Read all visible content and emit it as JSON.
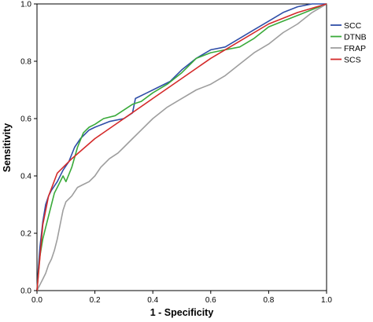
{
  "chart_data": {
    "type": "line",
    "title": "",
    "xlabel": "1 - Specificity",
    "ylabel": "Sensitivity",
    "xlim": [
      0.0,
      1.0
    ],
    "ylim": [
      0.0,
      1.0
    ],
    "xticks": [
      "0.0",
      "0.2",
      "0.4",
      "0.6",
      "0.8",
      "1.0"
    ],
    "yticks": [
      "0.0",
      "0.2",
      "0.4",
      "0.6",
      "0.8",
      "1.0"
    ],
    "grid": false,
    "legend_position": "right",
    "series": [
      {
        "name": "SCC",
        "color": "#2f4ea8",
        "points": [
          [
            0,
            0
          ],
          [
            0.005,
            0.08
          ],
          [
            0.01,
            0.15
          ],
          [
            0.02,
            0.24
          ],
          [
            0.03,
            0.3
          ],
          [
            0.04,
            0.33
          ],
          [
            0.05,
            0.35
          ],
          [
            0.07,
            0.38
          ],
          [
            0.09,
            0.42
          ],
          [
            0.11,
            0.45
          ],
          [
            0.13,
            0.5
          ],
          [
            0.15,
            0.53
          ],
          [
            0.18,
            0.56
          ],
          [
            0.2,
            0.57
          ],
          [
            0.25,
            0.59
          ],
          [
            0.3,
            0.6
          ],
          [
            0.33,
            0.62
          ],
          [
            0.34,
            0.67
          ],
          [
            0.38,
            0.69
          ],
          [
            0.42,
            0.71
          ],
          [
            0.46,
            0.73
          ],
          [
            0.5,
            0.77
          ],
          [
            0.55,
            0.81
          ],
          [
            0.6,
            0.84
          ],
          [
            0.65,
            0.85
          ],
          [
            0.7,
            0.88
          ],
          [
            0.75,
            0.91
          ],
          [
            0.8,
            0.94
          ],
          [
            0.85,
            0.97
          ],
          [
            0.9,
            0.99
          ],
          [
            0.95,
            1.0
          ],
          [
            1.0,
            1.0
          ]
        ]
      },
      {
        "name": "DTNB",
        "color": "#3aaa3a",
        "points": [
          [
            0,
            0
          ],
          [
            0.005,
            0.06
          ],
          [
            0.01,
            0.12
          ],
          [
            0.02,
            0.18
          ],
          [
            0.03,
            0.22
          ],
          [
            0.04,
            0.26
          ],
          [
            0.05,
            0.3
          ],
          [
            0.06,
            0.34
          ],
          [
            0.07,
            0.36
          ],
          [
            0.09,
            0.4
          ],
          [
            0.1,
            0.38
          ],
          [
            0.12,
            0.43
          ],
          [
            0.14,
            0.5
          ],
          [
            0.16,
            0.55
          ],
          [
            0.18,
            0.57
          ],
          [
            0.2,
            0.58
          ],
          [
            0.23,
            0.6
          ],
          [
            0.27,
            0.61
          ],
          [
            0.3,
            0.63
          ],
          [
            0.33,
            0.65
          ],
          [
            0.36,
            0.66
          ],
          [
            0.4,
            0.69
          ],
          [
            0.45,
            0.72
          ],
          [
            0.5,
            0.76
          ],
          [
            0.55,
            0.81
          ],
          [
            0.6,
            0.83
          ],
          [
            0.65,
            0.84
          ],
          [
            0.7,
            0.85
          ],
          [
            0.75,
            0.88
          ],
          [
            0.8,
            0.92
          ],
          [
            0.85,
            0.94
          ],
          [
            0.9,
            0.96
          ],
          [
            0.95,
            0.98
          ],
          [
            1.0,
            1.0
          ]
        ]
      },
      {
        "name": "FRAP",
        "color": "#9e9e9e",
        "points": [
          [
            0,
            0
          ],
          [
            0.01,
            0.02
          ],
          [
            0.02,
            0.04
          ],
          [
            0.03,
            0.06
          ],
          [
            0.04,
            0.09
          ],
          [
            0.05,
            0.11
          ],
          [
            0.06,
            0.14
          ],
          [
            0.07,
            0.18
          ],
          [
            0.08,
            0.23
          ],
          [
            0.09,
            0.28
          ],
          [
            0.1,
            0.31
          ],
          [
            0.12,
            0.33
          ],
          [
            0.14,
            0.36
          ],
          [
            0.16,
            0.37
          ],
          [
            0.18,
            0.38
          ],
          [
            0.2,
            0.4
          ],
          [
            0.22,
            0.43
          ],
          [
            0.25,
            0.46
          ],
          [
            0.28,
            0.48
          ],
          [
            0.3,
            0.5
          ],
          [
            0.33,
            0.53
          ],
          [
            0.36,
            0.56
          ],
          [
            0.4,
            0.6
          ],
          [
            0.45,
            0.64
          ],
          [
            0.5,
            0.67
          ],
          [
            0.55,
            0.7
          ],
          [
            0.6,
            0.72
          ],
          [
            0.65,
            0.75
          ],
          [
            0.7,
            0.79
          ],
          [
            0.75,
            0.83
          ],
          [
            0.8,
            0.86
          ],
          [
            0.85,
            0.9
          ],
          [
            0.9,
            0.93
          ],
          [
            0.95,
            0.97
          ],
          [
            1.0,
            1.0
          ]
        ]
      },
      {
        "name": "SCS",
        "color": "#d42a2a",
        "points": [
          [
            0,
            0
          ],
          [
            0.02,
            0.23
          ],
          [
            0.04,
            0.33
          ],
          [
            0.07,
            0.41
          ],
          [
            0.12,
            0.46
          ],
          [
            0.2,
            0.53
          ],
          [
            0.3,
            0.6
          ],
          [
            0.4,
            0.67
          ],
          [
            0.5,
            0.74
          ],
          [
            0.6,
            0.81
          ],
          [
            0.7,
            0.87
          ],
          [
            0.8,
            0.93
          ],
          [
            0.9,
            0.97
          ],
          [
            1.0,
            1.0
          ]
        ]
      }
    ]
  }
}
